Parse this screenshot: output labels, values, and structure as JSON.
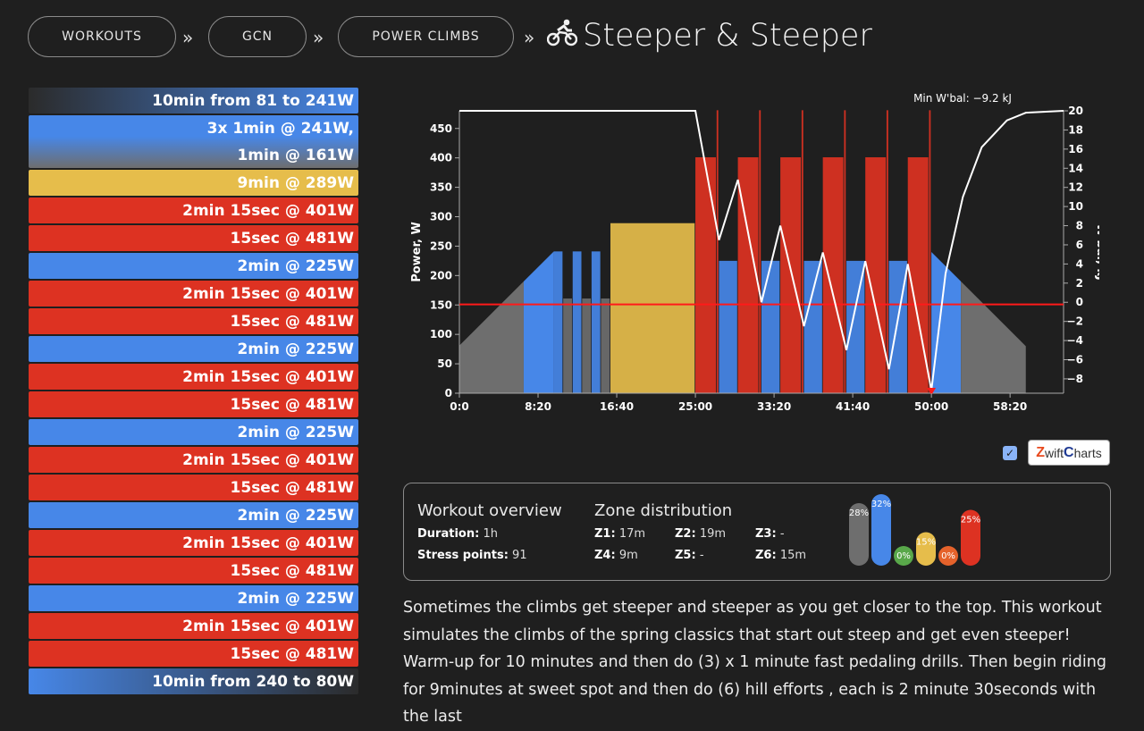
{
  "breadcrumb": {
    "items": [
      "WORKOUTS",
      "GCN",
      "POWER CLIMBS"
    ],
    "separator": "»",
    "title": "Steeper & Steeper",
    "title_icon": "cyclist-icon"
  },
  "intervals": [
    {
      "label": "10min from 81 to 241W",
      "type": "ramp-up"
    },
    {
      "label": "3x 1min @ 241W,",
      "label2": "1min @ 161W",
      "type": "set"
    },
    {
      "label": "9min @ 289W",
      "type": "yellow"
    },
    {
      "label": "2min 15sec @ 401W",
      "type": "red"
    },
    {
      "label": "15sec @ 481W",
      "type": "red"
    },
    {
      "label": "2min @ 225W",
      "type": "blue"
    },
    {
      "label": "2min 15sec @ 401W",
      "type": "red"
    },
    {
      "label": "15sec @ 481W",
      "type": "red"
    },
    {
      "label": "2min @ 225W",
      "type": "blue"
    },
    {
      "label": "2min 15sec @ 401W",
      "type": "red"
    },
    {
      "label": "15sec @ 481W",
      "type": "red"
    },
    {
      "label": "2min @ 225W",
      "type": "blue"
    },
    {
      "label": "2min 15sec @ 401W",
      "type": "red"
    },
    {
      "label": "15sec @ 481W",
      "type": "red"
    },
    {
      "label": "2min @ 225W",
      "type": "blue"
    },
    {
      "label": "2min 15sec @ 401W",
      "type": "red"
    },
    {
      "label": "15sec @ 481W",
      "type": "red"
    },
    {
      "label": "2min @ 225W",
      "type": "blue"
    },
    {
      "label": "2min 15sec @ 401W",
      "type": "red"
    },
    {
      "label": "15sec @ 481W",
      "type": "red"
    },
    {
      "label": "10min from 240 to 80W",
      "type": "ramp-down"
    }
  ],
  "colors": {
    "red": "#dd3222",
    "blue": "#4787e8",
    "yellow": "#e6bd4b",
    "gray": "#6e6e6e",
    "green": "#59a84a",
    "orange": "#e5622b",
    "threshold": "#ff1a1a"
  },
  "chart_data": {
    "type": "area",
    "xlabel": "",
    "ylabel": "Power, W",
    "y2label": "W'bal, kJ",
    "annotation": "Min W'bal: −9.2 kJ",
    "xlim": [
      0,
      3840
    ],
    "ylim": [
      0,
      480
    ],
    "y2lim": [
      -9.5,
      20
    ],
    "x_ticks": [
      "0:0",
      "8:20",
      "16:40",
      "25:00",
      "33:20",
      "41:40",
      "50:00",
      "58:20"
    ],
    "y_ticks": [
      "0",
      "50",
      "100",
      "150",
      "200",
      "250",
      "300",
      "350",
      "400",
      "450"
    ],
    "y2_ticks": [
      "−8",
      "−6",
      "−4",
      "−2",
      "0",
      "2",
      "4",
      "6",
      "8",
      "10",
      "12",
      "14",
      "16",
      "18",
      "20"
    ],
    "ftp_line": 151,
    "segments": [
      {
        "start": 0,
        "end": 600,
        "from": 81,
        "to": 241,
        "zone": "ramp"
      },
      {
        "start": 600,
        "end": 660,
        "from": 241,
        "to": 241,
        "zone": "blue"
      },
      {
        "start": 660,
        "end": 720,
        "from": 161,
        "to": 161,
        "zone": "gray"
      },
      {
        "start": 720,
        "end": 780,
        "from": 241,
        "to": 241,
        "zone": "blue"
      },
      {
        "start": 780,
        "end": 840,
        "from": 161,
        "to": 161,
        "zone": "gray"
      },
      {
        "start": 840,
        "end": 900,
        "from": 241,
        "to": 241,
        "zone": "blue"
      },
      {
        "start": 900,
        "end": 960,
        "from": 161,
        "to": 161,
        "zone": "gray"
      },
      {
        "start": 960,
        "end": 1500,
        "from": 289,
        "to": 289,
        "zone": "yellow"
      },
      {
        "start": 1500,
        "end": 1635,
        "from": 401,
        "to": 401,
        "zone": "red"
      },
      {
        "start": 1635,
        "end": 1650,
        "from": 481,
        "to": 481,
        "zone": "red"
      },
      {
        "start": 1650,
        "end": 1770,
        "from": 225,
        "to": 225,
        "zone": "blue"
      },
      {
        "start": 1770,
        "end": 1905,
        "from": 401,
        "to": 401,
        "zone": "red"
      },
      {
        "start": 1905,
        "end": 1920,
        "from": 481,
        "to": 481,
        "zone": "red"
      },
      {
        "start": 1920,
        "end": 2040,
        "from": 225,
        "to": 225,
        "zone": "blue"
      },
      {
        "start": 2040,
        "end": 2175,
        "from": 401,
        "to": 401,
        "zone": "red"
      },
      {
        "start": 2175,
        "end": 2190,
        "from": 481,
        "to": 481,
        "zone": "red"
      },
      {
        "start": 2190,
        "end": 2310,
        "from": 225,
        "to": 225,
        "zone": "blue"
      },
      {
        "start": 2310,
        "end": 2445,
        "from": 401,
        "to": 401,
        "zone": "red"
      },
      {
        "start": 2445,
        "end": 2460,
        "from": 481,
        "to": 481,
        "zone": "red"
      },
      {
        "start": 2460,
        "end": 2580,
        "from": 225,
        "to": 225,
        "zone": "blue"
      },
      {
        "start": 2580,
        "end": 2715,
        "from": 401,
        "to": 401,
        "zone": "red"
      },
      {
        "start": 2715,
        "end": 2730,
        "from": 481,
        "to": 481,
        "zone": "red"
      },
      {
        "start": 2730,
        "end": 2850,
        "from": 225,
        "to": 225,
        "zone": "blue"
      },
      {
        "start": 2850,
        "end": 2985,
        "from": 401,
        "to": 401,
        "zone": "red"
      },
      {
        "start": 2985,
        "end": 3000,
        "from": 481,
        "to": 481,
        "zone": "red"
      },
      {
        "start": 3000,
        "end": 3600,
        "from": 240,
        "to": 80,
        "zone": "ramp"
      }
    ],
    "wbal": [
      [
        0,
        20
      ],
      [
        1500,
        20
      ],
      [
        1650,
        6.5
      ],
      [
        1770,
        12.8
      ],
      [
        1920,
        0
      ],
      [
        2040,
        8
      ],
      [
        2190,
        -2.5
      ],
      [
        2310,
        5.2
      ],
      [
        2460,
        -5
      ],
      [
        2580,
        4.3
      ],
      [
        2730,
        -7
      ],
      [
        2850,
        4
      ],
      [
        3000,
        -9.2
      ],
      [
        3090,
        3
      ],
      [
        3200,
        11
      ],
      [
        3320,
        16.2
      ],
      [
        3480,
        19
      ],
      [
        3600,
        19.8
      ],
      [
        3840,
        20
      ]
    ]
  },
  "toggle": {
    "checked": true
  },
  "logo": {
    "text": "ZwiftCharts"
  },
  "overview": {
    "heading": "Workout overview",
    "duration_label": "Duration:",
    "duration_value": "1h",
    "stress_label": "Stress points:",
    "stress_value": "91",
    "zones_heading": "Zone distribution",
    "zones": [
      {
        "label": "Z1:",
        "value": "17m"
      },
      {
        "label": "Z2:",
        "value": "19m"
      },
      {
        "label": "Z3:",
        "value": "-"
      },
      {
        "label": "Z4:",
        "value": "9m"
      },
      {
        "label": "Z5:",
        "value": "-"
      },
      {
        "label": "Z6:",
        "value": "15m"
      }
    ],
    "pills": [
      {
        "pct": "28%",
        "frac": 0.28,
        "color": "#6e6e6e"
      },
      {
        "pct": "32%",
        "frac": 0.32,
        "color": "#4787e8"
      },
      {
        "pct": "0%",
        "frac": 0,
        "color": "#59a84a"
      },
      {
        "pct": "15%",
        "frac": 0.15,
        "color": "#e6bd4b"
      },
      {
        "pct": "0%",
        "frac": 0,
        "color": "#e5622b"
      },
      {
        "pct": "25%",
        "frac": 0.25,
        "color": "#dd3222"
      }
    ]
  },
  "description": "Sometimes the climbs get steeper and steeper as you get closer to the top. This workout simulates the climbs of the spring classics that start out steep and get even steeper! Warm-up for 10 minutes and then do (3) x 1 minute fast pedaling drills. Then begin riding for 9minutes at sweet spot and then do (6) hill efforts , each is 2 minute 30seconds with the last"
}
